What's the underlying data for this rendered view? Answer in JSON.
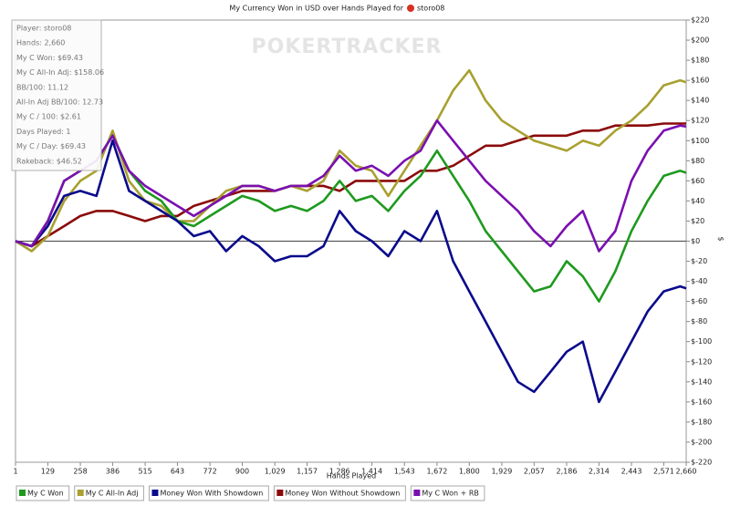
{
  "chart_data": {
    "type": "line",
    "title": "My Currency Won in USD over Hands Played for",
    "title_player": "storo08",
    "watermark": "POKERTRACKER",
    "x_label": "Hands Played",
    "y_label": "$",
    "stats": [
      "Player: storo08",
      "Hands: 2,660",
      "My C Won: $69.43",
      "My C All-In Adj: $158.06",
      "BB/100: 11.12",
      "All-In Adj BB/100: 12.73",
      "My C / 100: $2.61",
      "Days Played: 1",
      "My C / Day: $69.43",
      "Rakeback: $46.52"
    ],
    "xlim": [
      1,
      2660
    ],
    "xticks": [
      1,
      129,
      258,
      386,
      515,
      643,
      772,
      900,
      {
        "value": 1029,
        "label": "1,029"
      },
      {
        "value": 1157,
        "label": "1,157"
      },
      {
        "value": 1286,
        "label": "1,286"
      },
      {
        "value": 1414,
        "label": "1,414"
      },
      {
        "value": 1543,
        "label": "1,543"
      },
      {
        "value": 1672,
        "label": "1,672"
      },
      {
        "value": 1800,
        "label": "1,800"
      },
      {
        "value": 1929,
        "label": "1,929"
      },
      {
        "value": 2057,
        "label": "2,057"
      },
      {
        "value": 2186,
        "label": "2,186"
      },
      {
        "value": 2314,
        "label": "2,314"
      },
      {
        "value": 2443,
        "label": "2,443"
      },
      {
        "value": 2571,
        "label": "2,571"
      },
      {
        "value": 2660,
        "label": "2,660"
      }
    ],
    "ylim": [
      -220,
      220
    ],
    "yticks": [
      {
        "value": 220,
        "label": "$220"
      },
      {
        "value": 200,
        "label": "$200"
      },
      {
        "value": 180,
        "label": "$180"
      },
      {
        "value": 160,
        "label": "$160"
      },
      {
        "value": 140,
        "label": "$140"
      },
      {
        "value": 120,
        "label": "$120"
      },
      {
        "value": 100,
        "label": "$100"
      },
      {
        "value": 80,
        "label": "$80"
      },
      {
        "value": 60,
        "label": "$60"
      },
      {
        "value": 40,
        "label": "$40"
      },
      {
        "value": 20,
        "label": "$20"
      },
      {
        "value": 0,
        "label": "$0"
      },
      {
        "value": -20,
        "label": "$-20"
      },
      {
        "value": -40,
        "label": "$-40"
      },
      {
        "value": -60,
        "label": "$-60"
      },
      {
        "value": -80,
        "label": "$-80"
      },
      {
        "value": -100,
        "label": "$-100"
      },
      {
        "value": -120,
        "label": "$-120"
      },
      {
        "value": -140,
        "label": "$-140"
      },
      {
        "value": -160,
        "label": "$-160"
      },
      {
        "value": -180,
        "label": "$-180"
      },
      {
        "value": -200,
        "label": "$-200"
      },
      {
        "value": -220,
        "label": "$-220"
      }
    ],
    "x": [
      1,
      65,
      129,
      194,
      258,
      322,
      386,
      451,
      515,
      579,
      643,
      708,
      772,
      836,
      900,
      965,
      1029,
      1093,
      1157,
      1222,
      1286,
      1350,
      1414,
      1479,
      1543,
      1607,
      1672,
      1736,
      1800,
      1865,
      1929,
      1993,
      2057,
      2122,
      2186,
      2250,
      2314,
      2379,
      2443,
      2507,
      2571,
      2636,
      2660
    ],
    "series": [
      {
        "name": "My C Won",
        "color": "#1e9a1e",
        "values": [
          0,
          -5,
          20,
          60,
          70,
          80,
          105,
          70,
          50,
          40,
          20,
          15,
          25,
          35,
          45,
          40,
          30,
          35,
          30,
          40,
          60,
          40,
          45,
          30,
          50,
          65,
          90,
          65,
          40,
          10,
          -10,
          -30,
          -50,
          -45,
          -20,
          -35,
          -60,
          -30,
          10,
          40,
          65,
          70,
          68
        ]
      },
      {
        "name": "My C All-In Adj",
        "color": "#a8a030",
        "values": [
          0,
          -10,
          5,
          40,
          60,
          70,
          110,
          60,
          40,
          35,
          20,
          20,
          35,
          50,
          55,
          55,
          50,
          55,
          50,
          60,
          90,
          75,
          70,
          45,
          70,
          95,
          120,
          150,
          170,
          140,
          120,
          110,
          100,
          95,
          90,
          100,
          95,
          110,
          120,
          135,
          155,
          160,
          158
        ]
      },
      {
        "name": "Money Won With Showdown",
        "color": "#0a0a8c",
        "values": [
          0,
          -5,
          15,
          45,
          50,
          45,
          100,
          50,
          40,
          30,
          20,
          5,
          10,
          -10,
          5,
          -5,
          -20,
          -15,
          -15,
          -5,
          30,
          10,
          0,
          -15,
          10,
          0,
          30,
          -20,
          -50,
          -80,
          -110,
          -140,
          -150,
          -130,
          -110,
          -100,
          -160,
          -130,
          -100,
          -70,
          -50,
          -45,
          -47
        ]
      },
      {
        "name": "Money Won Without Showdown",
        "color": "#8b0a0a",
        "values": [
          0,
          -5,
          5,
          15,
          25,
          30,
          30,
          25,
          20,
          25,
          25,
          35,
          40,
          45,
          50,
          50,
          50,
          55,
          55,
          55,
          50,
          60,
          60,
          60,
          60,
          70,
          70,
          75,
          85,
          95,
          95,
          100,
          105,
          105,
          105,
          110,
          110,
          115,
          115,
          115,
          117,
          117,
          117
        ]
      },
      {
        "name": "My C Won + RB",
        "color": "#7a10b0",
        "values": [
          0,
          -5,
          20,
          60,
          70,
          80,
          105,
          70,
          55,
          45,
          35,
          25,
          35,
          45,
          55,
          55,
          50,
          55,
          55,
          65,
          85,
          70,
          75,
          65,
          80,
          90,
          120,
          100,
          80,
          60,
          45,
          30,
          10,
          -5,
          15,
          30,
          -10,
          10,
          60,
          90,
          110,
          115,
          114
        ]
      }
    ]
  }
}
